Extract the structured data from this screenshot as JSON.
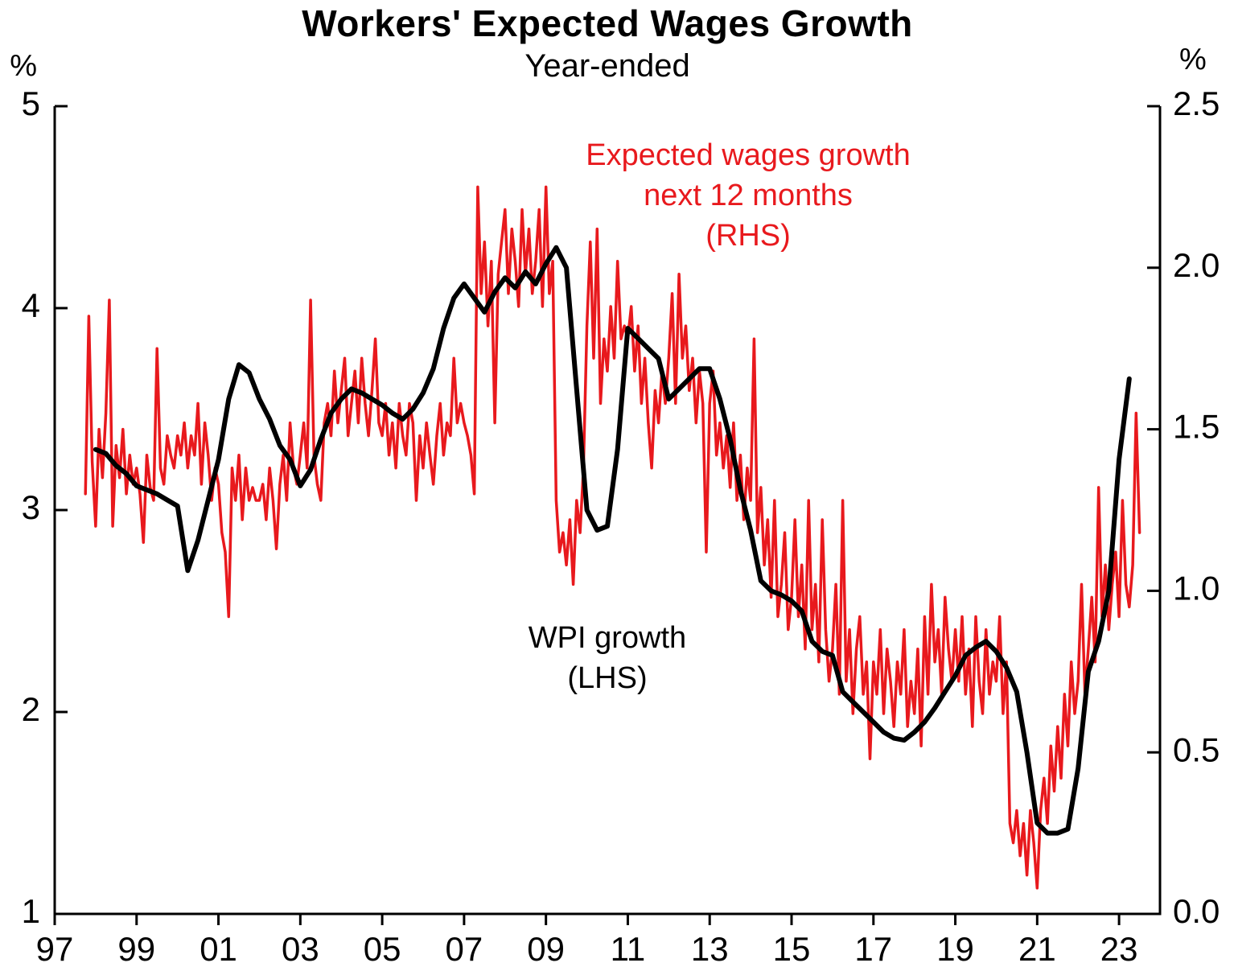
{
  "title": "Workers' Expected Wages Growth",
  "subtitle": "Year-ended",
  "left_axis": {
    "unit": "%",
    "tick_values": [
      5,
      4,
      3,
      2,
      1
    ],
    "tick_labels": [
      "5",
      "4",
      "3",
      "2",
      "1"
    ]
  },
  "right_axis": {
    "unit": "%",
    "tick_values": [
      2.5,
      2.0,
      1.5,
      1.0,
      0.5,
      0.0
    ],
    "tick_labels": [
      "2.5",
      "2.0",
      "1.5",
      "1.0",
      "0.5",
      "0.0"
    ]
  },
  "x_axis": {
    "tick_values": [
      1997,
      1999,
      2001,
      2003,
      2005,
      2007,
      2009,
      2011,
      2013,
      2015,
      2017,
      2019,
      2021,
      2023
    ],
    "tick_labels": [
      "97",
      "99",
      "01",
      "03",
      "05",
      "07",
      "09",
      "11",
      "13",
      "15",
      "17",
      "19",
      "21",
      "23"
    ]
  },
  "annotations": {
    "red": {
      "line1": "Expected wages growth",
      "line2": "next 12 months",
      "line3": "(RHS)",
      "color": "#e8191d"
    },
    "black": {
      "line1": "WPI growth",
      "line2": "(LHS)",
      "color": "#000000"
    }
  },
  "chart_data": {
    "type": "line",
    "title": "Workers' Expected Wages Growth",
    "subtitle": "Year-ended",
    "xlim": [
      1997,
      2024
    ],
    "left_ylim": [
      1,
      5
    ],
    "right_ylim": [
      0,
      2.5
    ],
    "grid": false,
    "legend": "in-plot text annotations",
    "series": [
      {
        "name": "Expected wages growth next 12 months (RHS)",
        "axis": "right",
        "color": "#e8191d",
        "stroke_width": 3.5,
        "x_start": 1997.75,
        "x_step": 0.0833333,
        "values": [
          1.3,
          1.85,
          1.4,
          1.2,
          1.5,
          1.35,
          1.55,
          1.9,
          1.2,
          1.45,
          1.35,
          1.5,
          1.3,
          1.42,
          1.33,
          1.38,
          1.3,
          1.15,
          1.42,
          1.32,
          1.28,
          1.75,
          1.38,
          1.33,
          1.48,
          1.42,
          1.38,
          1.48,
          1.42,
          1.52,
          1.38,
          1.48,
          1.42,
          1.58,
          1.33,
          1.52,
          1.42,
          1.28,
          1.38,
          1.33,
          1.18,
          1.12,
          0.92,
          1.38,
          1.28,
          1.42,
          1.22,
          1.38,
          1.28,
          1.32,
          1.28,
          1.28,
          1.33,
          1.22,
          1.38,
          1.28,
          1.13,
          1.33,
          1.42,
          1.28,
          1.52,
          1.38,
          1.33,
          1.42,
          1.52,
          1.38,
          1.9,
          1.42,
          1.33,
          1.28,
          1.52,
          1.58,
          1.48,
          1.68,
          1.52,
          1.62,
          1.72,
          1.48,
          1.58,
          1.68,
          1.52,
          1.72,
          1.58,
          1.48,
          1.62,
          1.78,
          1.52,
          1.48,
          1.58,
          1.42,
          1.52,
          1.38,
          1.58,
          1.48,
          1.42,
          1.58,
          1.52,
          1.28,
          1.48,
          1.38,
          1.52,
          1.42,
          1.33,
          1.48,
          1.58,
          1.42,
          1.52,
          1.48,
          1.72,
          1.52,
          1.58,
          1.52,
          1.48,
          1.42,
          1.3,
          2.25,
          1.92,
          2.08,
          1.82,
          2.02,
          1.52,
          1.98,
          2.08,
          2.18,
          1.92,
          2.12,
          2.02,
          1.88,
          2.18,
          1.98,
          2.12,
          1.92,
          2.02,
          2.18,
          1.88,
          2.25,
          1.92,
          2.02,
          1.28,
          1.12,
          1.18,
          1.08,
          1.22,
          1.02,
          1.28,
          1.18,
          1.38,
          1.82,
          2.08,
          1.72,
          2.12,
          1.58,
          1.78,
          1.68,
          1.88,
          1.72,
          2.02,
          1.78,
          1.82,
          1.78,
          1.88,
          1.68,
          1.82,
          1.58,
          1.72,
          1.52,
          1.38,
          1.62,
          1.52,
          1.68,
          1.58,
          1.72,
          1.92,
          1.58,
          1.98,
          1.72,
          1.82,
          1.62,
          1.72,
          1.52,
          1.68,
          1.58,
          1.12,
          1.58,
          1.68,
          1.42,
          1.52,
          1.38,
          1.48,
          1.32,
          1.52,
          1.28,
          1.42,
          1.22,
          1.38,
          1.28,
          1.78,
          1.18,
          1.32,
          1.08,
          1.22,
          0.98,
          1.28,
          0.92,
          1.02,
          1.18,
          0.88,
          0.98,
          1.22,
          0.92,
          1.08,
          0.82,
          1.28,
          0.88,
          1.02,
          0.78,
          1.22,
          0.88,
          0.72,
          0.82,
          1.02,
          0.68,
          1.28,
          0.72,
          0.88,
          0.62,
          0.82,
          0.92,
          0.68,
          0.78,
          0.48,
          0.78,
          0.68,
          0.88,
          0.62,
          0.82,
          0.72,
          0.58,
          0.78,
          0.68,
          0.88,
          0.58,
          0.72,
          0.62,
          0.82,
          0.52,
          0.92,
          0.68,
          1.02,
          0.78,
          0.88,
          0.68,
          0.98,
          0.82,
          0.72,
          0.88,
          0.72,
          0.92,
          0.68,
          0.82,
          0.58,
          0.92,
          0.72,
          0.62,
          0.88,
          0.68,
          0.78,
          0.72,
          0.92,
          0.62,
          0.78,
          0.28,
          0.22,
          0.32,
          0.18,
          0.28,
          0.12,
          0.32,
          0.22,
          0.08,
          0.32,
          0.42,
          0.28,
          0.52,
          0.38,
          0.58,
          0.42,
          0.68,
          0.52,
          0.78,
          0.62,
          0.72,
          1.02,
          0.68,
          0.82,
          0.98,
          0.78,
          1.32,
          0.92,
          1.08,
          0.88,
          1.02,
          1.12,
          0.92,
          1.28,
          1.02,
          0.95,
          1.08,
          1.55,
          1.18
        ]
      },
      {
        "name": "WPI growth (LHS)",
        "axis": "left",
        "color": "#000000",
        "stroke_width": 6,
        "x_start": 1998.0,
        "x_step": 0.25,
        "values": [
          3.3,
          3.28,
          3.22,
          3.18,
          3.12,
          3.1,
          3.08,
          3.05,
          3.02,
          2.7,
          2.85,
          3.05,
          3.25,
          3.55,
          3.72,
          3.68,
          3.55,
          3.45,
          3.32,
          3.25,
          3.12,
          3.2,
          3.35,
          3.48,
          3.55,
          3.6,
          3.58,
          3.55,
          3.52,
          3.48,
          3.45,
          3.5,
          3.58,
          3.7,
          3.9,
          4.05,
          4.12,
          4.05,
          3.98,
          4.08,
          4.15,
          4.1,
          4.18,
          4.12,
          4.22,
          4.3,
          4.2,
          3.6,
          3.0,
          2.9,
          2.92,
          3.3,
          3.9,
          3.85,
          3.8,
          3.75,
          3.55,
          3.6,
          3.65,
          3.7,
          3.7,
          3.55,
          3.35,
          3.1,
          2.9,
          2.65,
          2.6,
          2.58,
          2.55,
          2.5,
          2.35,
          2.3,
          2.28,
          2.1,
          2.05,
          2.0,
          1.95,
          1.9,
          1.87,
          1.86,
          1.9,
          1.95,
          2.02,
          2.1,
          2.18,
          2.28,
          2.32,
          2.35,
          2.3,
          2.22,
          2.1,
          1.8,
          1.45,
          1.4,
          1.4,
          1.42,
          1.72,
          2.2,
          2.35,
          2.6,
          3.25,
          3.65
        ]
      }
    ]
  }
}
